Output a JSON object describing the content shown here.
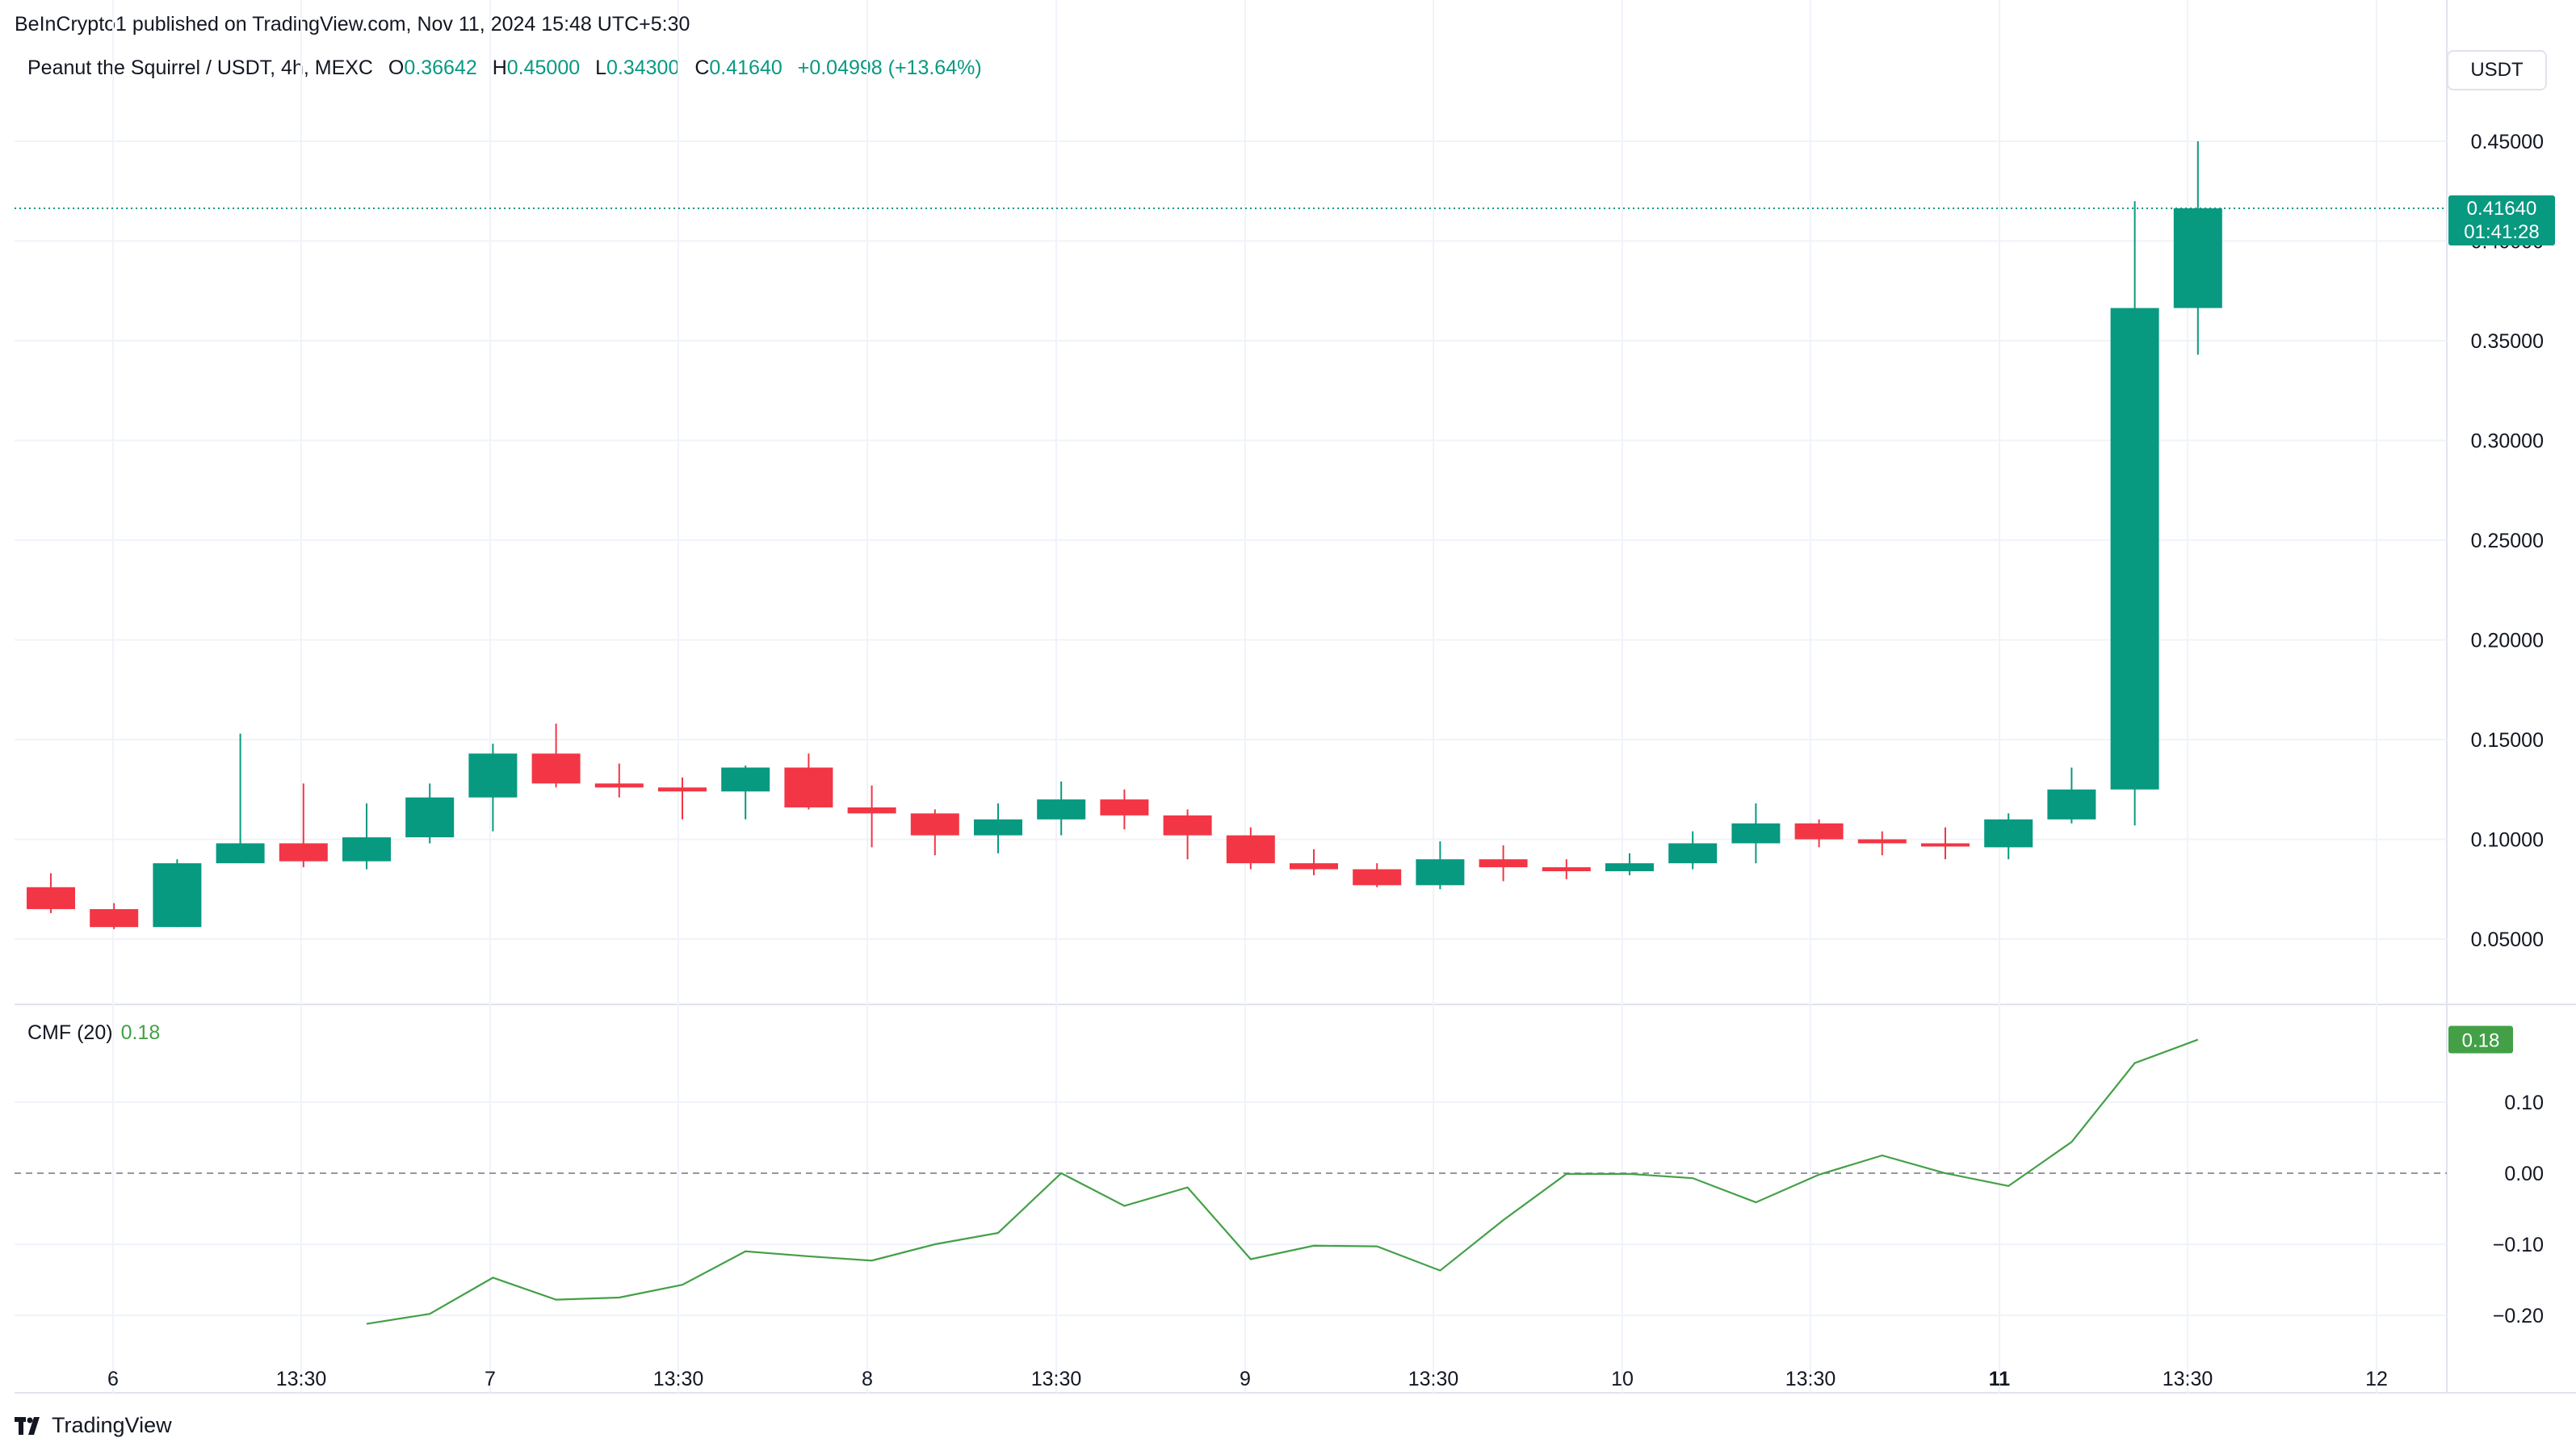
{
  "header": {
    "attribution": "BeInCrypto1 published on TradingView.com, Nov 11, 2024 15:48 UTC+5:30",
    "symbol": "Peanut the Squirrel / USDT, 4h, MEXC",
    "o_label": "O",
    "o_value": "0.36642",
    "h_label": "H",
    "h_value": "0.45000",
    "l_label": "L",
    "l_value": "0.34300",
    "c_label": "C",
    "c_value": "0.41640",
    "change": "+0.04998 (+13.64%)"
  },
  "currency_button": "USDT",
  "price_badge": {
    "price": "0.41640",
    "countdown": "01:41:28"
  },
  "cmf": {
    "label": "CMF (20)",
    "value": "0.18",
    "badge": "0.18"
  },
  "footer": {
    "brand": "TradingView"
  },
  "colors": {
    "up": "#089981",
    "down": "#f23645",
    "cmf_line": "#43a047",
    "grid": "#f0f3fa"
  },
  "chart_data": [
    {
      "type": "candlestick",
      "title": "Peanut the Squirrel / USDT, 4h, MEXC",
      "ylim": [
        0.0,
        0.48
      ],
      "y_ticks": [
        "0.05000",
        "0.10000",
        "0.15000",
        "0.20000",
        "0.25000",
        "0.30000",
        "0.35000",
        "0.40000",
        "0.45000"
      ],
      "x_ticks": [
        "6",
        "13:30",
        "7",
        "13:30",
        "8",
        "13:30",
        "9",
        "13:30",
        "10",
        "13:30",
        "11",
        "13:30",
        "12"
      ],
      "last_price_line": 0.4164,
      "candles": [
        {
          "o": 0.076,
          "h": 0.083,
          "l": 0.063,
          "c": 0.065
        },
        {
          "o": 0.065,
          "h": 0.068,
          "l": 0.055,
          "c": 0.056
        },
        {
          "o": 0.056,
          "h": 0.09,
          "l": 0.056,
          "c": 0.088
        },
        {
          "o": 0.088,
          "h": 0.153,
          "l": 0.088,
          "c": 0.098
        },
        {
          "o": 0.098,
          "h": 0.128,
          "l": 0.086,
          "c": 0.089
        },
        {
          "o": 0.089,
          "h": 0.118,
          "l": 0.085,
          "c": 0.101
        },
        {
          "o": 0.101,
          "h": 0.128,
          "l": 0.098,
          "c": 0.121
        },
        {
          "o": 0.121,
          "h": 0.148,
          "l": 0.104,
          "c": 0.143
        },
        {
          "o": 0.143,
          "h": 0.158,
          "l": 0.126,
          "c": 0.128
        },
        {
          "o": 0.128,
          "h": 0.138,
          "l": 0.121,
          "c": 0.126
        },
        {
          "o": 0.126,
          "h": 0.131,
          "l": 0.11,
          "c": 0.124
        },
        {
          "o": 0.124,
          "h": 0.137,
          "l": 0.11,
          "c": 0.136
        },
        {
          "o": 0.136,
          "h": 0.143,
          "l": 0.115,
          "c": 0.116
        },
        {
          "o": 0.116,
          "h": 0.127,
          "l": 0.096,
          "c": 0.113
        },
        {
          "o": 0.113,
          "h": 0.115,
          "l": 0.092,
          "c": 0.102
        },
        {
          "o": 0.102,
          "h": 0.118,
          "l": 0.093,
          "c": 0.11
        },
        {
          "o": 0.11,
          "h": 0.129,
          "l": 0.102,
          "c": 0.12
        },
        {
          "o": 0.12,
          "h": 0.125,
          "l": 0.105,
          "c": 0.112
        },
        {
          "o": 0.112,
          "h": 0.115,
          "l": 0.09,
          "c": 0.102
        },
        {
          "o": 0.102,
          "h": 0.106,
          "l": 0.085,
          "c": 0.088
        },
        {
          "o": 0.088,
          "h": 0.095,
          "l": 0.082,
          "c": 0.085
        },
        {
          "o": 0.085,
          "h": 0.088,
          "l": 0.076,
          "c": 0.077
        },
        {
          "o": 0.077,
          "h": 0.099,
          "l": 0.075,
          "c": 0.09
        },
        {
          "o": 0.09,
          "h": 0.097,
          "l": 0.079,
          "c": 0.086
        },
        {
          "o": 0.086,
          "h": 0.09,
          "l": 0.08,
          "c": 0.084
        },
        {
          "o": 0.084,
          "h": 0.093,
          "l": 0.082,
          "c": 0.088
        },
        {
          "o": 0.088,
          "h": 0.104,
          "l": 0.085,
          "c": 0.098
        },
        {
          "o": 0.098,
          "h": 0.118,
          "l": 0.088,
          "c": 0.108
        },
        {
          "o": 0.108,
          "h": 0.11,
          "l": 0.096,
          "c": 0.1
        },
        {
          "o": 0.1,
          "h": 0.104,
          "l": 0.092,
          "c": 0.098
        },
        {
          "o": 0.098,
          "h": 0.106,
          "l": 0.09,
          "c": 0.097
        },
        {
          "o": 0.096,
          "h": 0.113,
          "l": 0.09,
          "c": 0.11
        },
        {
          "o": 0.11,
          "h": 0.136,
          "l": 0.108,
          "c": 0.125
        },
        {
          "o": 0.125,
          "h": 0.42,
          "l": 0.107,
          "c": 0.3664
        },
        {
          "o": 0.3664,
          "h": 0.45,
          "l": 0.343,
          "c": 0.4164
        }
      ]
    },
    {
      "type": "line",
      "title": "CMF (20)",
      "ylim": [
        -0.235,
        0.195
      ],
      "y_ticks": [
        "0.10",
        "0.00",
        "−0.10",
        "−0.20"
      ],
      "zero_line": 0.0,
      "series": [
        {
          "name": "CMF (20)",
          "start_index": 5,
          "values": [
            -0.212,
            -0.198,
            -0.147,
            -0.178,
            -0.175,
            -0.157,
            -0.11,
            -0.117,
            -0.123,
            -0.1,
            -0.084,
            0.0,
            -0.046,
            -0.02,
            -0.121,
            -0.102,
            -0.103,
            -0.137,
            -0.066,
            -0.001,
            -0.001,
            -0.007,
            -0.041,
            -0.002,
            0.025,
            0.0,
            -0.018,
            0.044,
            0.155,
            0.188
          ]
        }
      ]
    }
  ]
}
